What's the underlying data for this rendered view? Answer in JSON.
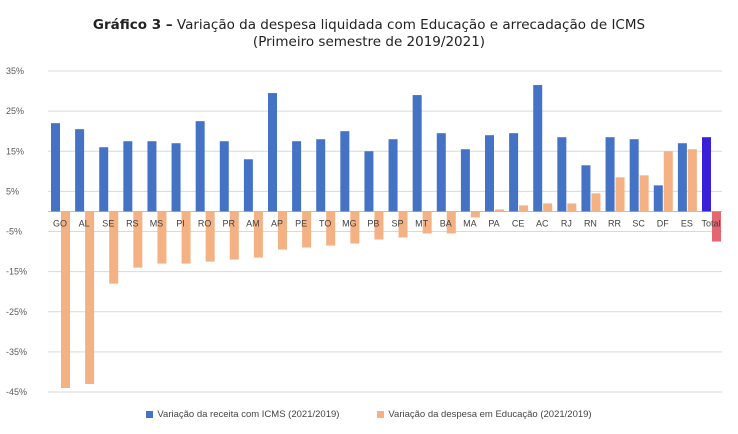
{
  "header": {
    "prefix": "Gráfico 3 –",
    "title": "Variação da despesa liquidada com Educação e arrecadação de ICMS",
    "subtitle": "(Primeiro semestre de 2019/2021)"
  },
  "chart_data": {
    "type": "bar",
    "categories": [
      "GO",
      "AL",
      "SE",
      "RS",
      "MS",
      "PI",
      "RO",
      "PR",
      "AM",
      "AP",
      "PE",
      "TO",
      "MG",
      "PB",
      "SP",
      "MT",
      "BA",
      "MA",
      "PA",
      "CE",
      "AC",
      "RJ",
      "RN",
      "RR",
      "SC",
      "DF",
      "ES",
      "Total"
    ],
    "series": [
      {
        "name": "Variação da receita com ICMS (2021/2019)",
        "color": "#4472C4",
        "values": [
          22,
          20.5,
          16,
          17.5,
          17.5,
          17,
          22.5,
          17.5,
          13,
          29.5,
          17.5,
          18,
          20,
          15,
          18,
          29,
          19.5,
          15.5,
          19,
          19.5,
          31.5,
          18.5,
          11.5,
          18.5,
          18,
          6.5,
          17,
          18.5
        ]
      },
      {
        "name": "Variação da despesa em Educação (2021/2019)",
        "color": "#F4B183",
        "values": [
          -44,
          -43,
          -18,
          -14,
          -13,
          -13,
          -12.5,
          -12,
          -11.5,
          -9.5,
          -9,
          -8.5,
          -8,
          -7,
          -6.5,
          -5.5,
          -5.5,
          -1.5,
          0.5,
          1.5,
          2,
          2,
          4.5,
          8.5,
          9,
          15,
          15.5,
          -7.5
        ]
      }
    ],
    "highlight_total_colors": {
      "income": "#3A1FD8",
      "expense": "#E46670"
    },
    "ylim": [
      -45,
      35
    ],
    "yticks": [
      35,
      25,
      15,
      5,
      -5,
      -15,
      -25,
      -35,
      -45
    ],
    "ytick_labels": [
      "35%",
      "25%",
      "15%",
      "5%",
      "-5%",
      "-15%",
      "-25%",
      "-35%",
      "-45%"
    ],
    "grid": true,
    "legend_position": "bottom",
    "xlabel": "",
    "ylabel": ""
  }
}
